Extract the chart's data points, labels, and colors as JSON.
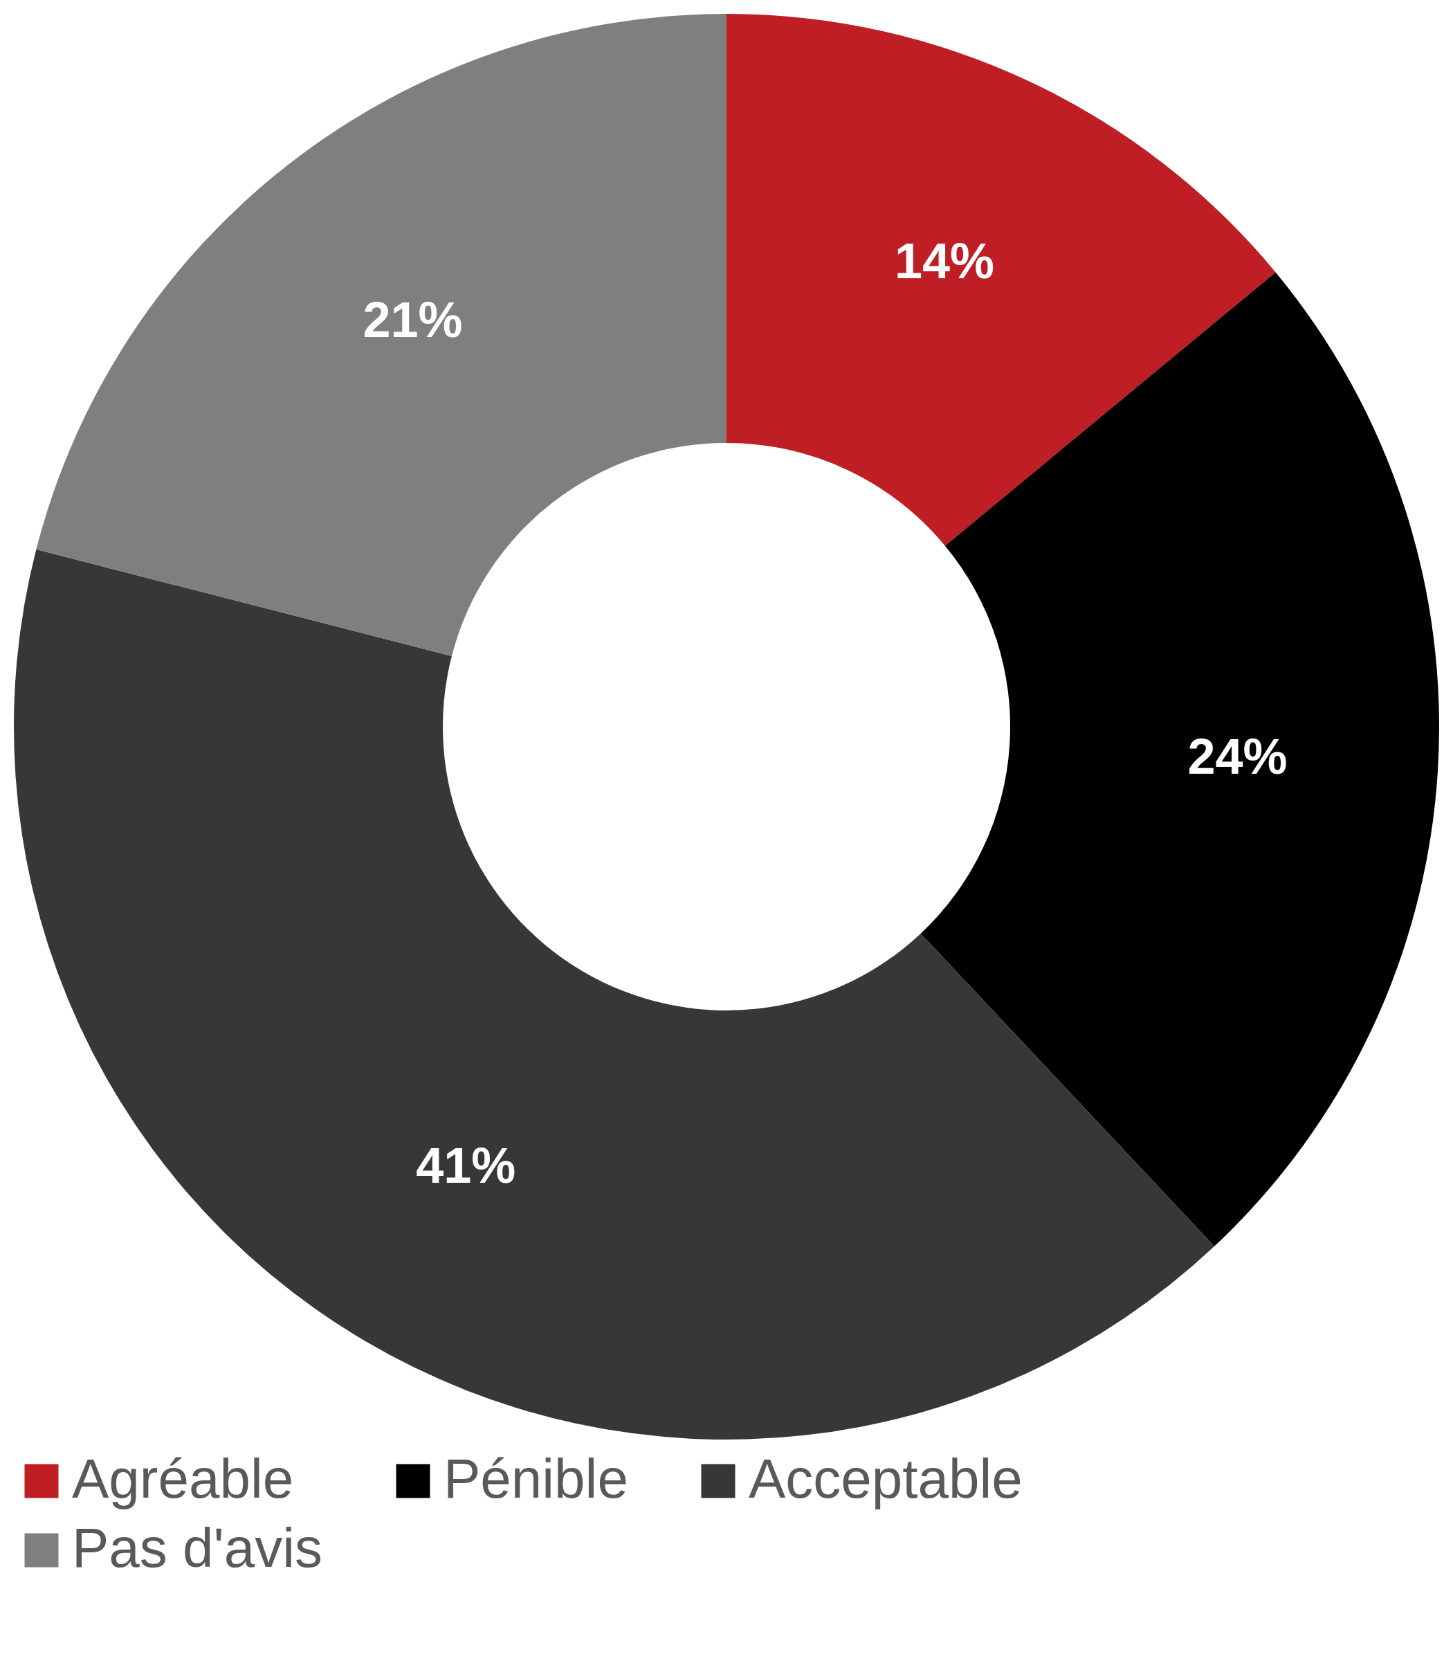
{
  "chart_data": {
    "type": "donut",
    "categories": [
      "Agréable",
      "Pénible",
      "Acceptable",
      "Pas d'avis"
    ],
    "values": [
      14,
      24,
      41,
      21
    ],
    "colors": [
      "#be1e24",
      "#000000",
      "#373737",
      "#7f7f7f"
    ],
    "value_labels": [
      "14%",
      "24%",
      "41%",
      "21%"
    ],
    "legend": "bottom"
  }
}
